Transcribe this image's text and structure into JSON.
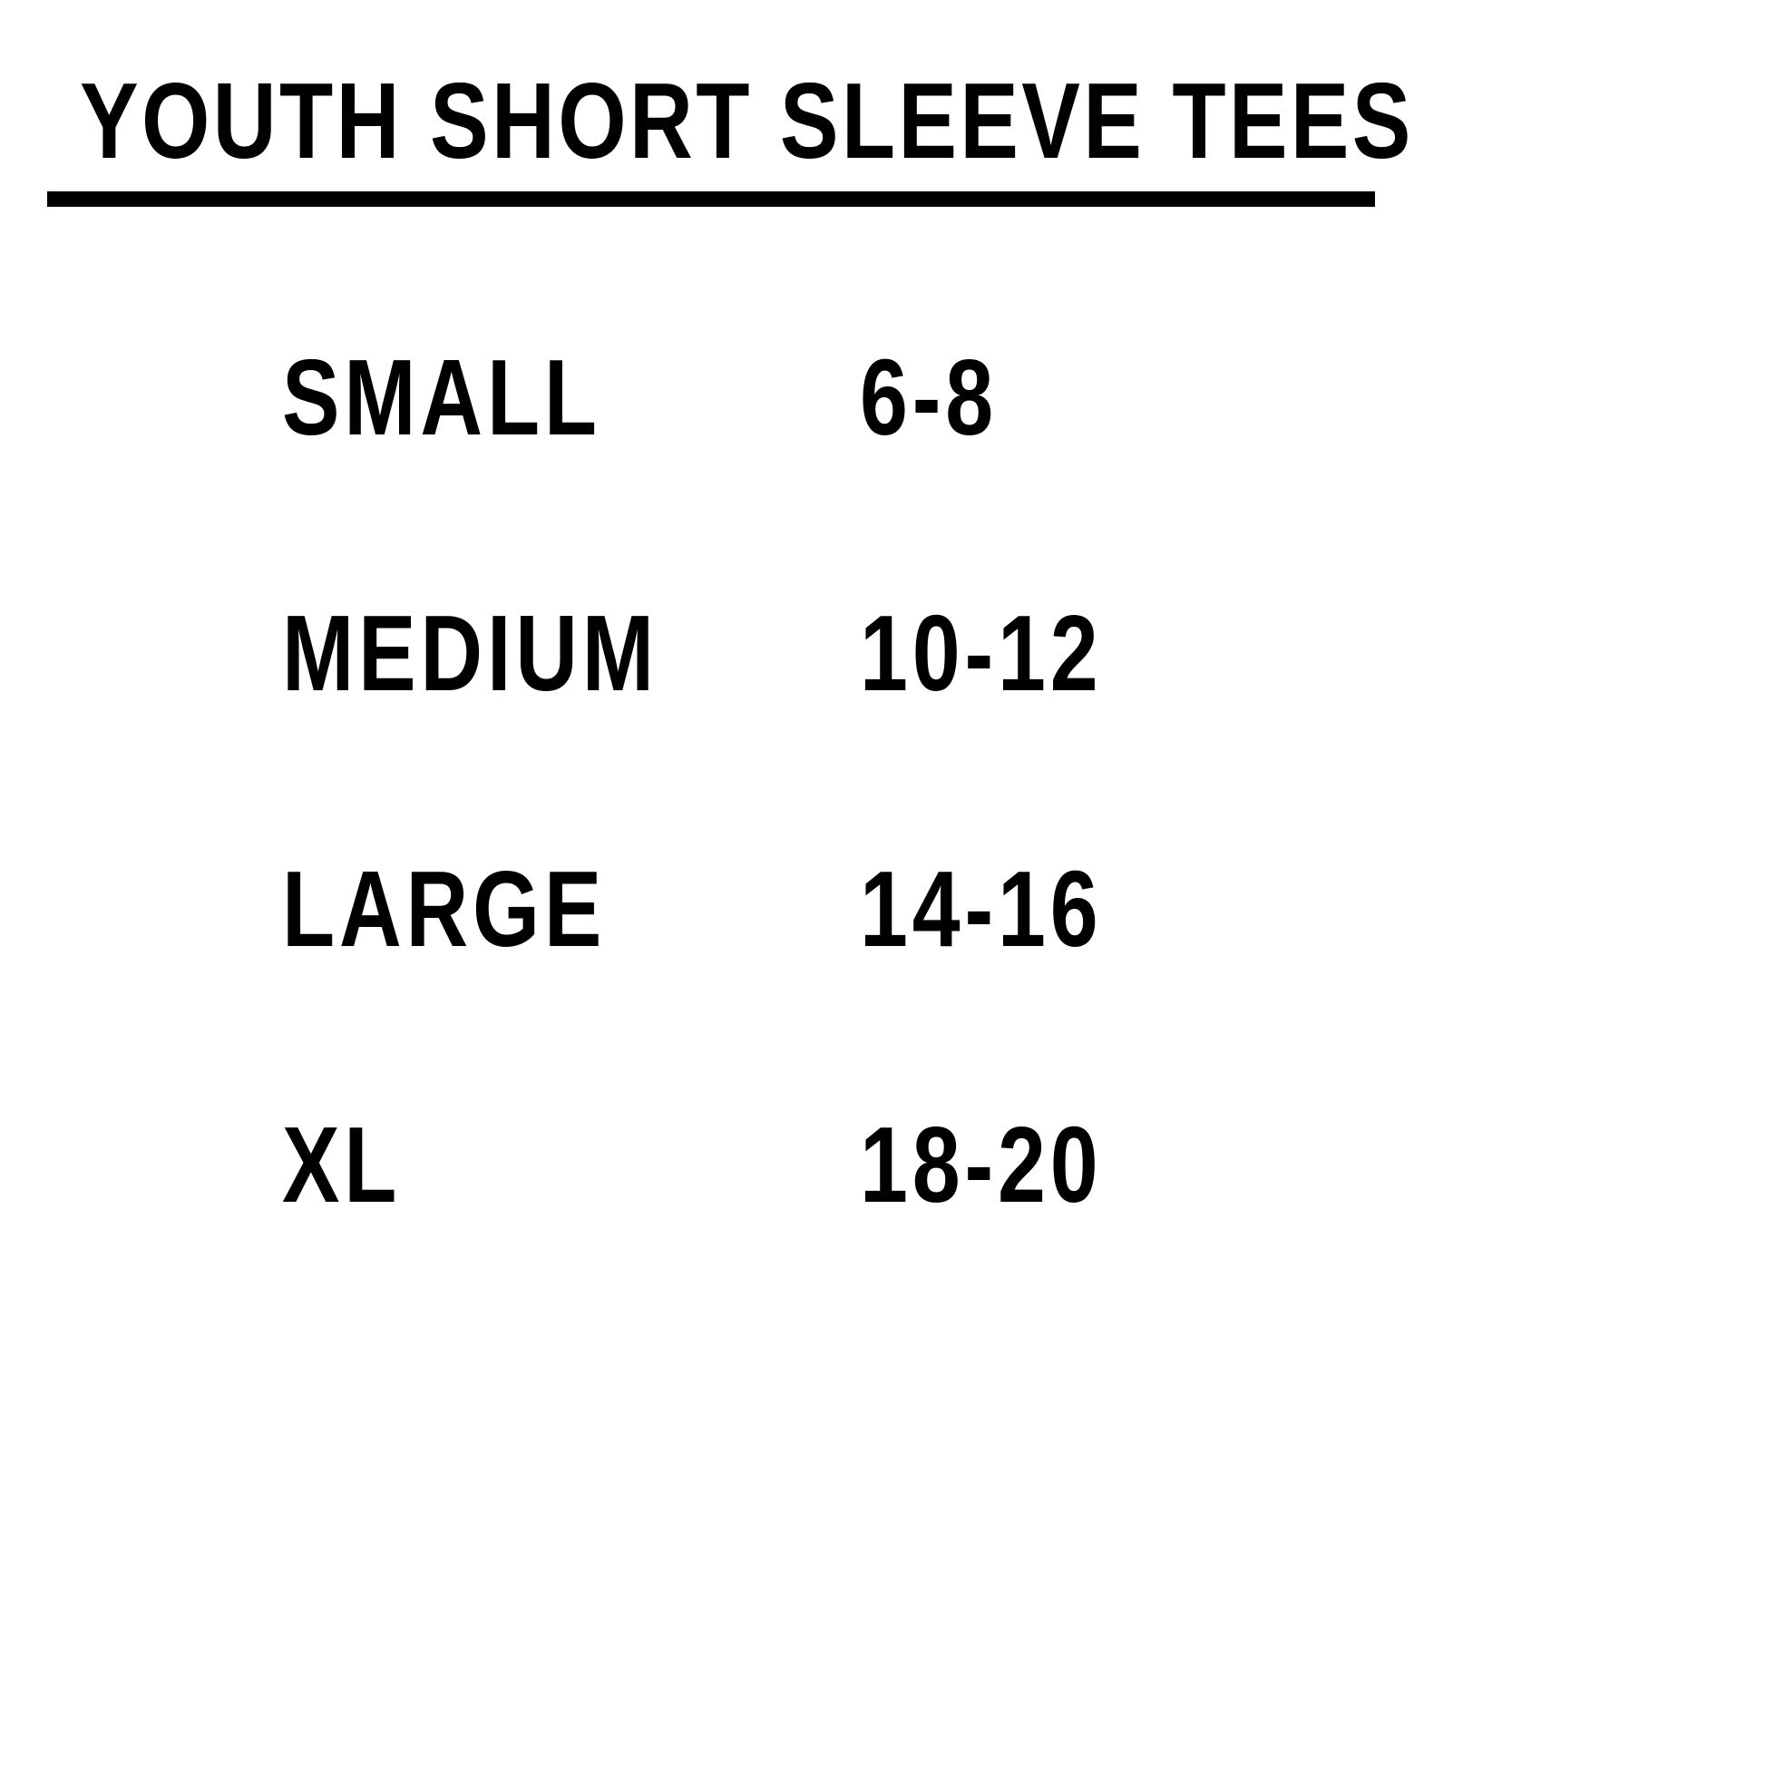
{
  "title": "YOUTH SHORT SLEEVE TEES",
  "rows": [
    {
      "size": "SMALL",
      "range": "6-8"
    },
    {
      "size": "MEDIUM",
      "range": "10-12"
    },
    {
      "size": "LARGE",
      "range": "14-16"
    },
    {
      "size": "XL",
      "range": "18-20"
    }
  ]
}
